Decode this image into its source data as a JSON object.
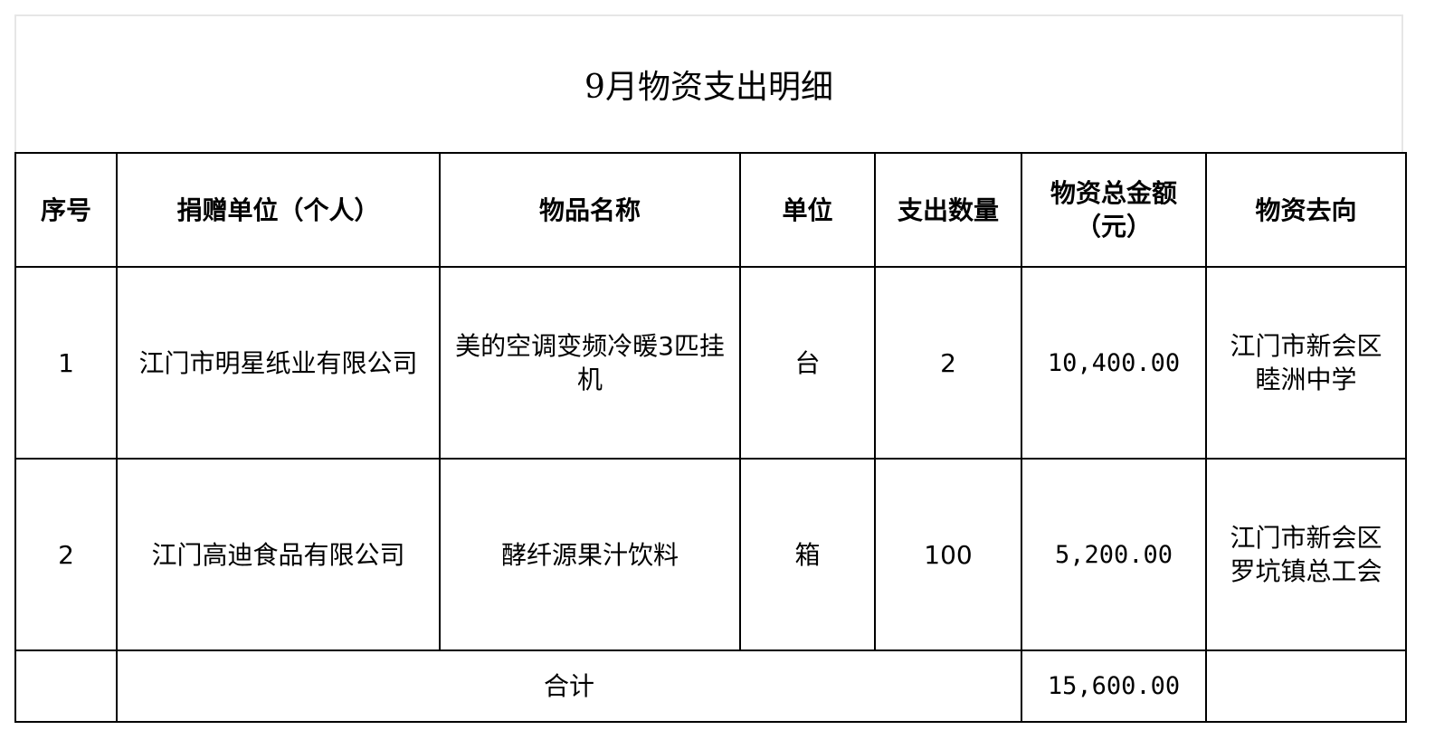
{
  "title": "9月物资支出明细",
  "headers": [
    "序号",
    "捐赠单位（个人）",
    "物品名称",
    "单位",
    "支出数量",
    "物资总金额（元）",
    "物资去向"
  ],
  "rows": [
    {
      "no": "1",
      "donor": "江门市明星纸业有限公司",
      "item": "美的空调变频冷暖3匹挂机",
      "unit": "台",
      "qty": "2",
      "amount": "10,400.00",
      "destination": "江门市新会区睦洲中学"
    },
    {
      "no": "2",
      "donor": "江门高迪食品有限公司",
      "item": "酵纤源果汁饮料",
      "unit": "箱",
      "qty": "100",
      "amount": "5,200.00",
      "destination": "江门市新会区罗坑镇总工会"
    }
  ],
  "total": {
    "label": "合计",
    "amount": "15,600.00"
  }
}
